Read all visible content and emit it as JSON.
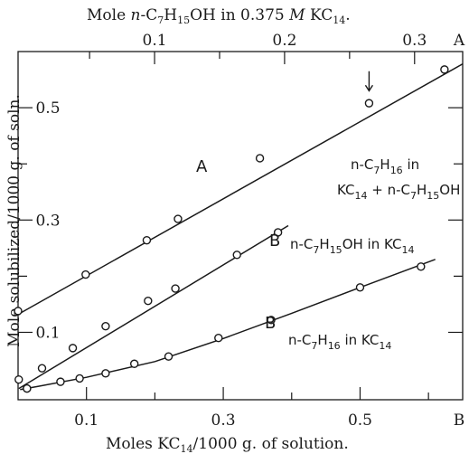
{
  "chart_data": {
    "type": "scatter",
    "top_axis_title": "Mole n-C7H15OH in 0.375 M KC14.",
    "xlabel": "Moles KC14/1000 g. of solution.",
    "ylabel": "Mole solubilized/1000 g. of soln.",
    "x_ticks": [
      "0.1",
      "0.3",
      "0.5"
    ],
    "x_axis_tag": "B",
    "top_ticks": [
      "0.1",
      "0.2",
      "0.3"
    ],
    "top_axis_tag": "A",
    "y_ticks": [
      "0.1",
      "0.3",
      "0.5"
    ],
    "xlim": [
      0,
      0.65
    ],
    "ylim": [
      -0.02,
      0.6
    ],
    "top_xlim": [
      -0.005,
      0.337
    ],
    "series": [
      {
        "name": "A",
        "label_lines": [
          "n-C7H16 in",
          "KC14 + n-C7H15OH"
        ],
        "x_axis": "top",
        "points": [
          [
            -0.005,
            0.138
          ],
          [
            0.047,
            0.203
          ],
          [
            0.094,
            0.264
          ],
          [
            0.118,
            0.302
          ],
          [
            0.181,
            0.41
          ],
          [
            0.265,
            0.508
          ],
          [
            0.323,
            0.568
          ]
        ],
        "fit": [
          [
            -0.005,
            0.132
          ],
          [
            0.337,
            0.578
          ]
        ],
        "arrow_at_x": 0.265
      },
      {
        "name": "B",
        "label_lines": [
          "n-C7H15OH in KC14"
        ],
        "x_axis": "bottom",
        "points": [
          [
            0.001,
            0.016
          ],
          [
            0.013,
            0.0
          ],
          [
            0.035,
            0.036
          ],
          [
            0.08,
            0.072
          ],
          [
            0.128,
            0.111
          ],
          [
            0.19,
            0.156
          ],
          [
            0.23,
            0.178
          ],
          [
            0.32,
            0.238
          ],
          [
            0.38,
            0.278
          ]
        ],
        "fit": [
          [
            0.001,
            0.0
          ],
          [
            0.395,
            0.29
          ]
        ]
      },
      {
        "name": "B",
        "label_lines": [
          "n-C7H16 in KC14"
        ],
        "x_axis": "bottom",
        "points": [
          [
            0.013,
            0.0
          ],
          [
            0.062,
            0.012
          ],
          [
            0.09,
            0.018
          ],
          [
            0.128,
            0.027
          ],
          [
            0.17,
            0.044
          ],
          [
            0.22,
            0.057
          ],
          [
            0.293,
            0.09
          ],
          [
            0.37,
            0.122
          ],
          [
            0.5,
            0.18
          ],
          [
            0.589,
            0.217
          ]
        ],
        "fit": [
          [
            0.003,
            -0.002
          ],
          [
            0.03,
            0.004
          ],
          [
            0.1,
            0.02
          ],
          [
            0.2,
            0.048
          ],
          [
            0.3,
            0.089
          ],
          [
            0.4,
            0.134
          ],
          [
            0.5,
            0.18
          ],
          [
            0.61,
            0.23
          ]
        ]
      }
    ]
  }
}
